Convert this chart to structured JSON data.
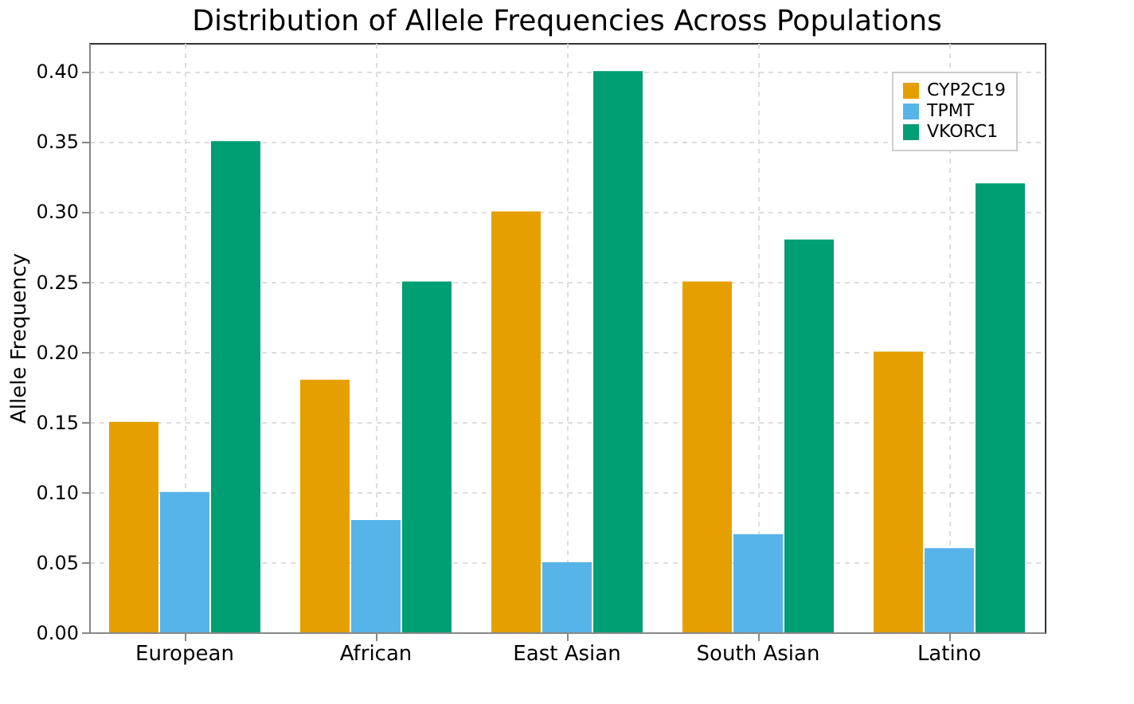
{
  "chart_data": {
    "type": "bar",
    "title": "Distribution of Allele Frequencies Across Populations",
    "ylabel": "Allele Frequency",
    "categories": [
      "European",
      "African",
      "East Asian",
      "South Asian",
      "Latino"
    ],
    "series": [
      {
        "name": "CYP2C19",
        "color": "#e69f00",
        "values": [
          0.15,
          0.18,
          0.3,
          0.25,
          0.2
        ]
      },
      {
        "name": "TPMT",
        "color": "#56b4e9",
        "values": [
          0.1,
          0.08,
          0.05,
          0.07,
          0.06
        ]
      },
      {
        "name": "VKORC1",
        "color": "#009e73",
        "values": [
          0.35,
          0.25,
          0.4,
          0.28,
          0.32
        ]
      }
    ],
    "ylim": [
      0,
      0.42
    ],
    "yticks": [
      {
        "value": 0,
        "label": "0.00"
      },
      {
        "value": 0.05,
        "label": "0.05"
      },
      {
        "value": 0.1,
        "label": "0.10"
      },
      {
        "value": 0.15,
        "label": "0.15"
      },
      {
        "value": 0.2,
        "label": "0.20"
      },
      {
        "value": 0.25,
        "label": "0.25"
      },
      {
        "value": 0.3,
        "label": "0.30"
      },
      {
        "value": 0.35,
        "label": "0.35"
      },
      {
        "value": 0.4,
        "label": "0.40"
      }
    ],
    "grid": true,
    "legend": "top right"
  }
}
